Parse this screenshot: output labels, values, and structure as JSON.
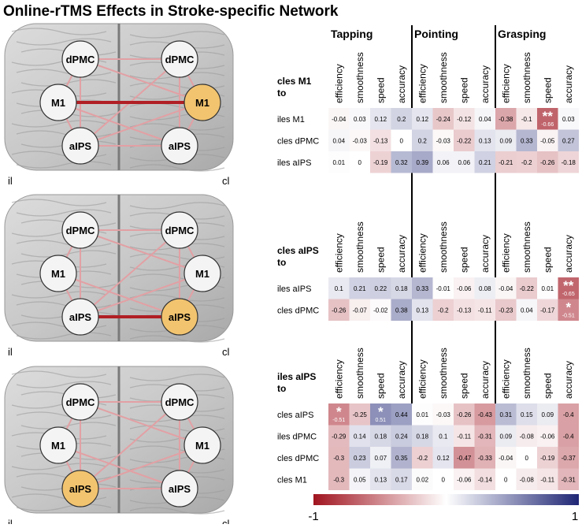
{
  "title": "Online-rTMS Effects in Stroke-specific Network",
  "groups": [
    "Tapping",
    "Pointing",
    "Grasping"
  ],
  "columns": [
    "efficiency",
    "smoothness",
    "speed",
    "accuracy",
    "efficiency",
    "smoothness",
    "speed",
    "accuracy",
    "efficiency",
    "smoothness",
    "speed",
    "accuracy"
  ],
  "panels": [
    {
      "nodes": [
        {
          "label": "dPMC",
          "color": "#f4f4f4"
        },
        {
          "label": "dPMC",
          "color": "#f4f4f4"
        },
        {
          "label": "M1",
          "color": "#f4f4f4"
        },
        {
          "label": "M1",
          "color": "#f2c46f"
        },
        {
          "label": "aIPS",
          "color": "#f4f4f4"
        },
        {
          "label": "aIPS",
          "color": "#f4f4f4"
        }
      ],
      "side_labels": [
        "il",
        "cl"
      ],
      "heading": [
        "cles M1",
        "to"
      ],
      "rows": [
        {
          "label": "iles M1",
          "values": [
            -0.04,
            0.03,
            0.12,
            0.2,
            0.12,
            -0.24,
            -0.12,
            0.04,
            -0.38,
            -0.1,
            -0.66,
            0.03
          ],
          "stars": [
            null,
            null,
            null,
            null,
            null,
            null,
            null,
            null,
            null,
            null,
            "**",
            null
          ]
        },
        {
          "label": "cles dPMC",
          "values": [
            0.04,
            -0.03,
            -0.13,
            0,
            0.2,
            -0.03,
            -0.22,
            0.13,
            0.09,
            0.33,
            -0.05,
            0.27
          ],
          "stars": [
            null,
            null,
            null,
            null,
            null,
            null,
            null,
            null,
            null,
            null,
            null,
            null
          ]
        },
        {
          "label": "iles aIPS",
          "values": [
            0.01,
            0,
            -0.19,
            0.32,
            0.39,
            0.06,
            0.06,
            0.21,
            -0.21,
            -0.2,
            -0.26,
            -0.18
          ],
          "stars": [
            null,
            null,
            null,
            null,
            null,
            null,
            null,
            null,
            null,
            null,
            null,
            null
          ]
        }
      ]
    },
    {
      "nodes": [
        {
          "label": "dPMC",
          "color": "#f4f4f4"
        },
        {
          "label": "dPMC",
          "color": "#f4f4f4"
        },
        {
          "label": "M1",
          "color": "#f4f4f4"
        },
        {
          "label": "M1",
          "color": "#f4f4f4"
        },
        {
          "label": "aIPS",
          "color": "#f4f4f4"
        },
        {
          "label": "aIPS",
          "color": "#f2c46f"
        }
      ],
      "side_labels": [
        "il",
        "cl"
      ],
      "heading": [
        "cles aIPS",
        "to"
      ],
      "rows": [
        {
          "label": "iles aIPS",
          "values": [
            0.1,
            0.21,
            0.22,
            0.18,
            0.33,
            -0.01,
            -0.06,
            0.08,
            -0.04,
            -0.22,
            0.01,
            -0.65
          ],
          "stars": [
            null,
            null,
            null,
            null,
            null,
            null,
            null,
            null,
            null,
            null,
            null,
            "**"
          ]
        },
        {
          "label": "cles dPMC",
          "values": [
            -0.26,
            -0.07,
            -0.02,
            0.38,
            0.13,
            -0.2,
            -0.13,
            -0.11,
            -0.23,
            0.04,
            -0.17,
            -0.51
          ],
          "stars": [
            null,
            null,
            null,
            null,
            null,
            null,
            null,
            null,
            null,
            null,
            null,
            "*"
          ]
        }
      ]
    },
    {
      "nodes": [
        {
          "label": "dPMC",
          "color": "#f4f4f4"
        },
        {
          "label": "dPMC",
          "color": "#f4f4f4"
        },
        {
          "label": "M1",
          "color": "#f4f4f4"
        },
        {
          "label": "M1",
          "color": "#f4f4f4"
        },
        {
          "label": "aIPS",
          "color": "#f2c46f"
        },
        {
          "label": "aIPS",
          "color": "#f4f4f4"
        }
      ],
      "side_labels": [
        "il",
        "cl"
      ],
      "heading": [
        "iles aIPS",
        "to"
      ],
      "rows": [
        {
          "label": "cles aIPS",
          "values": [
            -0.51,
            -0.25,
            0.51,
            0.44,
            0.01,
            -0.03,
            -0.26,
            -0.43,
            0.31,
            0.15,
            0.09,
            -0.4
          ],
          "stars": [
            "*",
            null,
            "*",
            null,
            null,
            null,
            null,
            null,
            null,
            null,
            null,
            null
          ]
        },
        {
          "label": "iles dPMC",
          "values": [
            -0.29,
            0.14,
            0.18,
            0.24,
            0.18,
            0.1,
            -0.11,
            -0.31,
            0.09,
            -0.08,
            -0.06,
            -0.4
          ],
          "stars": [
            null,
            null,
            null,
            null,
            null,
            null,
            null,
            null,
            null,
            null,
            null,
            null
          ]
        },
        {
          "label": "cles dPMC",
          "values": [
            -0.3,
            0.23,
            0.07,
            0.35,
            -0.2,
            0.12,
            -0.47,
            -0.33,
            -0.04,
            0,
            -0.19,
            -0.37
          ],
          "stars": [
            null,
            null,
            null,
            null,
            null,
            null,
            null,
            null,
            null,
            null,
            null,
            null
          ]
        },
        {
          "label": "cles M1",
          "values": [
            -0.3,
            0.05,
            0.13,
            0.17,
            0.02,
            0,
            -0.06,
            -0.14,
            0,
            -0.08,
            -0.11,
            -0.31
          ],
          "stars": [
            null,
            null,
            null,
            null,
            null,
            null,
            null,
            null,
            null,
            null,
            null,
            null
          ]
        }
      ]
    }
  ],
  "colorbar": {
    "min": -1,
    "max": 1,
    "colors": [
      "#a0141f",
      "#ffffff",
      "#1f2674"
    ]
  }
}
